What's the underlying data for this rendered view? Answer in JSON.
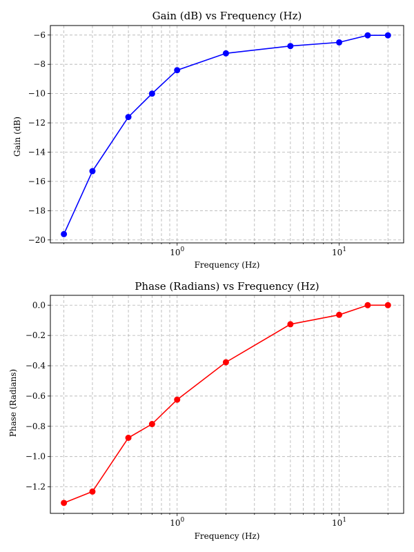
{
  "chart_data": [
    {
      "type": "line",
      "title": "Gain (dB) vs Frequency (Hz)",
      "xlabel": "Frequency (Hz)",
      "ylabel": "Gain (dB)",
      "xscale": "log",
      "grid": "both (major and minor), dashed",
      "x_tick_labels": [
        {
          "base": "10",
          "exp": "0",
          "value": 1
        },
        {
          "base": "10",
          "exp": "1",
          "value": 10
        }
      ],
      "y_ticks": [
        -20,
        -18,
        -16,
        -14,
        -12,
        -10,
        -8,
        -6
      ],
      "y_tick_labels": [
        "−20",
        "−18",
        "−16",
        "−14",
        "−12",
        "−10",
        "−8",
        "−6"
      ],
      "xlim": [
        0.165,
        25
      ],
      "ylim": [
        -20.2,
        -5.35
      ],
      "series": [
        {
          "color": "#0000ff",
          "marker": "circle",
          "x": [
            0.2,
            0.3,
            0.5,
            0.7,
            1,
            2,
            5,
            10,
            15,
            20
          ],
          "y": [
            -19.6,
            -15.3,
            -11.6,
            -10.0,
            -8.4,
            -7.25,
            -6.75,
            -6.5,
            -6.02,
            -6.02
          ]
        }
      ]
    },
    {
      "type": "line",
      "title": "Phase (Radians) vs Frequency (Hz)",
      "xlabel": "Frequency (Hz)",
      "ylabel": "Phase (Radians)",
      "xscale": "log",
      "grid": "both (major and minor), dashed",
      "x_tick_labels": [
        {
          "base": "10",
          "exp": "0",
          "value": 1
        },
        {
          "base": "10",
          "exp": "1",
          "value": 10
        }
      ],
      "y_ticks": [
        -1.2,
        -1.0,
        -0.8,
        -0.6,
        -0.4,
        -0.2,
        0.0
      ],
      "y_tick_labels": [
        "−1.2",
        "−1.0",
        "−0.8",
        "−0.6",
        "−0.4",
        "−0.2",
        "0.0"
      ],
      "xlim": [
        0.165,
        25
      ],
      "ylim": [
        -1.375,
        0.065
      ],
      "series": [
        {
          "color": "#ff0000",
          "marker": "circle",
          "x": [
            0.2,
            0.3,
            0.5,
            0.7,
            1,
            2,
            5,
            10,
            15,
            20
          ],
          "y": [
            -1.306,
            -1.231,
            -0.876,
            -0.785,
            -0.624,
            -0.377,
            -0.126,
            -0.064,
            0.0,
            0.0
          ]
        }
      ]
    }
  ]
}
